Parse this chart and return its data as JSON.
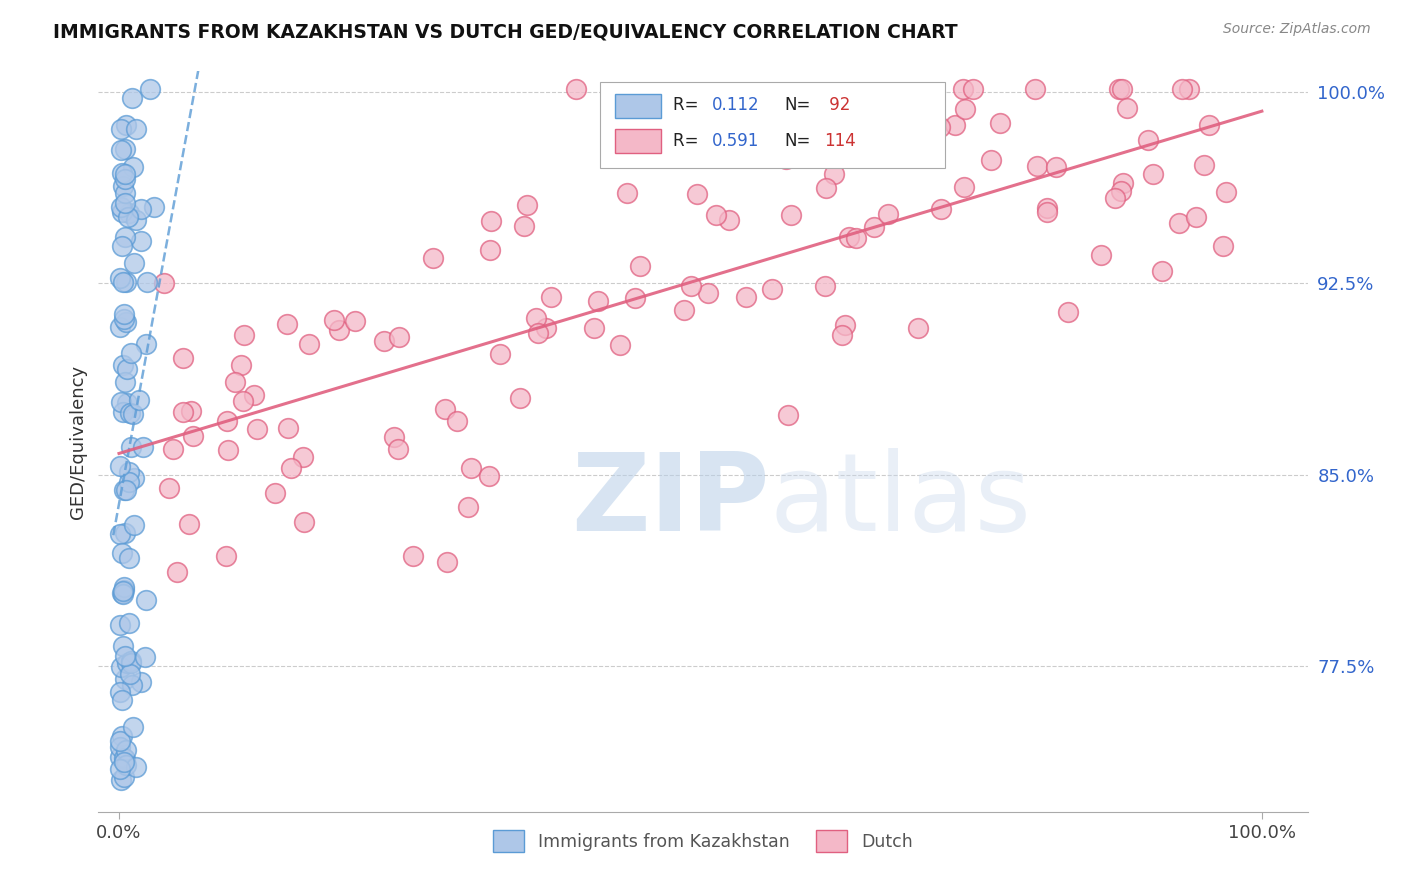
{
  "title": "IMMIGRANTS FROM KAZAKHSTAN VS DUTCH GED/EQUIVALENCY CORRELATION CHART",
  "source": "Source: ZipAtlas.com",
  "ylabel": "GED/Equivalency",
  "y_ticks": [
    0.775,
    0.85,
    0.925,
    1.0
  ],
  "y_tick_labels": [
    "77.5%",
    "85.0%",
    "92.5%",
    "100.0%"
  ],
  "y_min": 0.718,
  "y_max": 1.008,
  "x_min": -0.018,
  "x_max": 1.04,
  "blue_color": "#5b9bd5",
  "pink_color": "#e06080",
  "blue_fill": "#aec7e8",
  "pink_fill": "#f4b8c8",
  "blue_R": 0.112,
  "blue_N": 92,
  "pink_R": 0.591,
  "pink_N": 114,
  "grid_color": "#cccccc",
  "spine_color": "#aaaaaa"
}
